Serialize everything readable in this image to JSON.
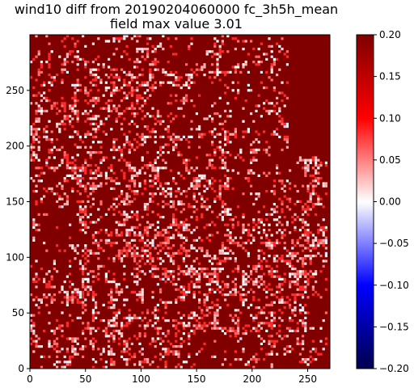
{
  "chart_data": {
    "type": "heatmap",
    "title": "wind10 diff from 20190204060000 fc_3h5h_mean\nfield max value 3.01",
    "title_lines": [
      "wind10 diff from 20190204060000 fc_3h5h_mean",
      "field max value 3.01"
    ],
    "xlabel": "",
    "ylabel": "",
    "xlim": [
      0,
      270
    ],
    "ylim": [
      0,
      300
    ],
    "x_ticks": [
      0,
      50,
      100,
      150,
      200,
      250
    ],
    "y_ticks": [
      0,
      50,
      100,
      150,
      200,
      250
    ],
    "grid_shape": [
      300,
      270
    ],
    "colormap": "seismic",
    "colorbar": {
      "range": [
        -0.2,
        0.2
      ],
      "ticks": [
        -0.2,
        -0.15,
        -0.1,
        -0.05,
        0.0,
        0.05,
        0.1,
        0.15,
        0.2
      ],
      "tick_labels": [
        "−0.20",
        "−0.15",
        "−0.10",
        "−0.05",
        "0.00",
        "0.05",
        "0.10",
        "0.15",
        "0.20"
      ],
      "colors": [
        "#00004c",
        "#0000ff",
        "#ffffff",
        "#ff0000",
        "#7f0000"
      ]
    },
    "field_description": "mostly dark red (>=0.20) with scattered bright red and white speckles along ridge-like structures; right edge above y~200 uniform dark red",
    "dominant_color": "#800000"
  }
}
